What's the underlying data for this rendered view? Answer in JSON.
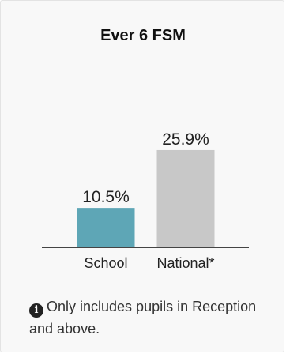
{
  "chart_data": {
    "type": "bar",
    "title": "Ever 6 FSM",
    "categories": [
      "School",
      "National*"
    ],
    "values": [
      10.5,
      25.9
    ],
    "value_labels": [
      "10.5%",
      "25.9%"
    ],
    "colors": [
      "#5ea6b6",
      "#c8c8c8"
    ],
    "unit": "%",
    "grid": false
  },
  "note": {
    "icon": "info-icon",
    "icon_glyph": "i",
    "text": "Only includes pupils in Reception and above."
  }
}
